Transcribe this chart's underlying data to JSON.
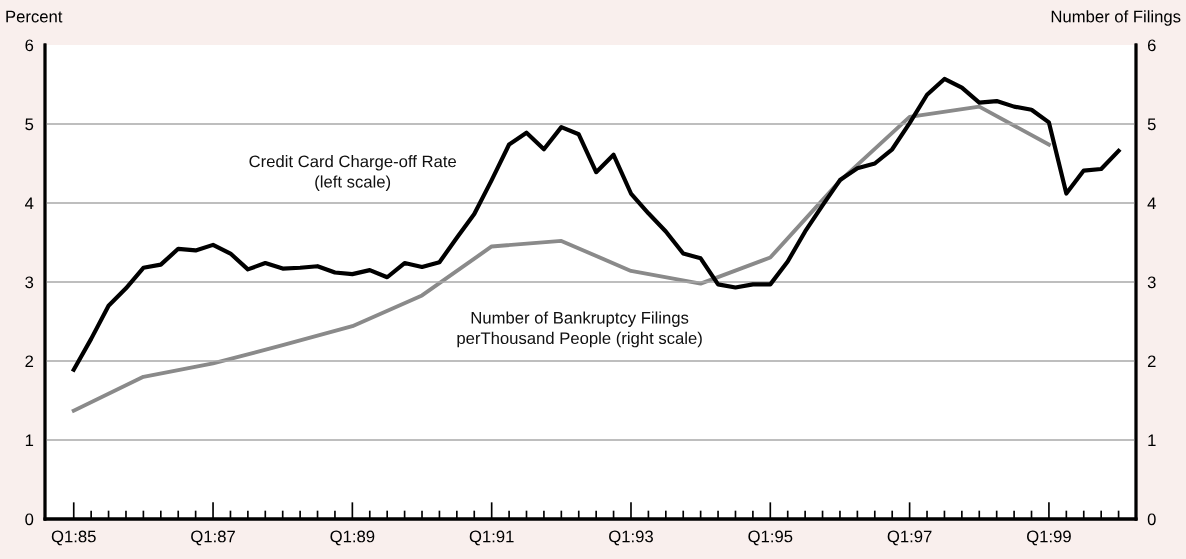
{
  "chart_data": {
    "type": "line",
    "ylabel": "Percent",
    "y2label": "Number of Filings",
    "ylim": [
      0,
      6
    ],
    "yticks": [
      0,
      1,
      2,
      3,
      4,
      5,
      6
    ],
    "y2lim": [
      0,
      6
    ],
    "y2ticks": [
      0,
      1,
      2,
      3,
      4,
      5,
      6
    ],
    "categories": [
      "Q1:85",
      null,
      null,
      null,
      null,
      null,
      null,
      null,
      "Q1:87",
      null,
      null,
      null,
      null,
      null,
      null,
      null,
      "Q1:89",
      null,
      null,
      null,
      null,
      null,
      null,
      null,
      "Q1:91",
      null,
      null,
      null,
      null,
      null,
      null,
      null,
      "Q1:93",
      null,
      null,
      null,
      null,
      null,
      null,
      null,
      "Q1:95",
      null,
      null,
      null,
      null,
      null,
      null,
      null,
      "Q1:97",
      null,
      null,
      null,
      null,
      null,
      null,
      null,
      "Q1:99",
      null,
      null,
      null,
      null
    ],
    "grid": "y",
    "legend": false,
    "marker": "none",
    "line_style": "solid",
    "series": [
      {
        "name": "Credit Card Charge-off Rate\n(left scale)",
        "color": "#000000",
        "values": [
          1.89,
          2.28,
          2.7,
          2.92,
          3.18,
          3.22,
          3.42,
          3.4,
          3.47,
          3.36,
          3.16,
          3.24,
          3.17,
          3.18,
          3.2,
          3.12,
          3.1,
          3.15,
          3.06,
          3.24,
          3.19,
          3.25,
          3.56,
          3.86,
          4.29,
          4.74,
          4.89,
          4.68,
          4.96,
          4.87,
          4.39,
          4.61,
          4.12,
          3.87,
          3.64,
          3.36,
          3.3,
          2.97,
          2.93,
          2.97,
          2.97,
          3.26,
          3.64,
          3.97,
          4.29,
          4.44,
          4.5,
          4.68,
          5.01,
          5.37,
          5.57,
          5.46,
          5.27,
          5.29,
          5.22,
          5.18,
          5.02,
          4.12,
          4.41,
          4.43,
          4.66
        ]
      },
      {
        "name": "Number of Bankruptcy Filings\nperThousand People (right scale)",
        "color": "#8a8a8a",
        "axis": "y2",
        "values": [
          1.37,
          null,
          null,
          null,
          1.8,
          null,
          null,
          null,
          1.97,
          null,
          null,
          null,
          2.2,
          null,
          null,
          null,
          2.44,
          null,
          null,
          null,
          2.83,
          null,
          null,
          null,
          3.45,
          null,
          null,
          null,
          3.52,
          null,
          null,
          null,
          3.14,
          null,
          null,
          null,
          2.98,
          null,
          null,
          null,
          3.31,
          null,
          null,
          null,
          4.28,
          null,
          null,
          null,
          5.09,
          null,
          null,
          null,
          5.22,
          null,
          null,
          null,
          4.74,
          null,
          null,
          null,
          null
        ]
      }
    ]
  }
}
